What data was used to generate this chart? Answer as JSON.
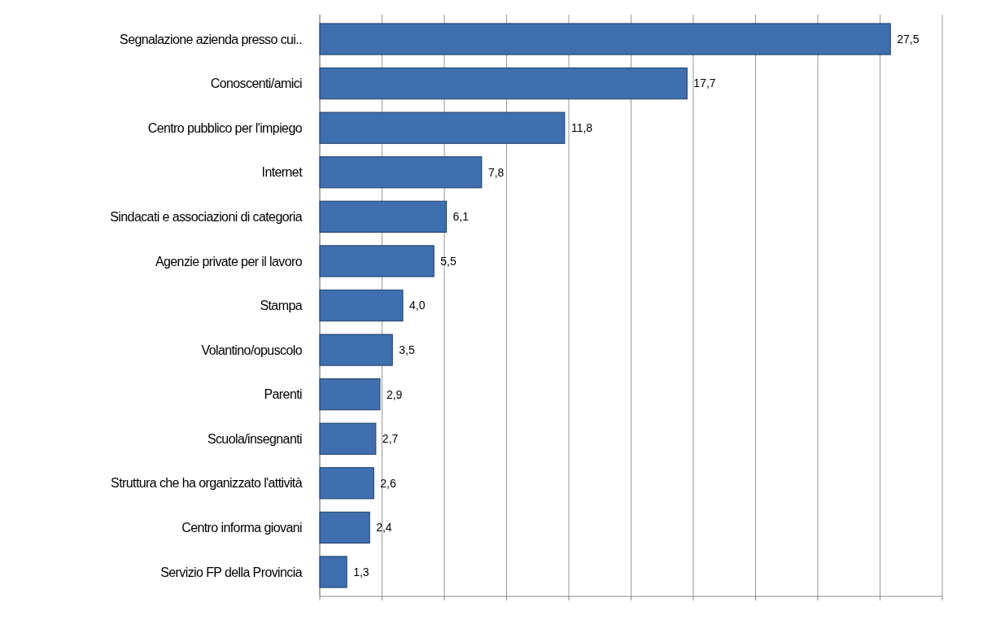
{
  "chart_data": {
    "type": "bar",
    "orientation": "horizontal",
    "categories": [
      "Segnalazione azienda presso cui..",
      "Conoscenti/amici",
      "Centro pubblico per l'impiego",
      "Internet",
      "Sindacati e associazioni di categoria",
      "Agenzie private per il lavoro",
      "Stampa",
      "Volantino/opuscolo",
      "Parenti",
      "Scuola/insegnanti",
      "Struttura che ha organizzato l'attività",
      "Centro informa giovani",
      "Servizio FP della Provincia"
    ],
    "values": [
      27.5,
      17.7,
      11.8,
      7.8,
      6.1,
      5.5,
      4.0,
      3.5,
      2.9,
      2.7,
      2.6,
      2.4,
      1.3
    ],
    "value_labels": [
      "27,5",
      "17,7",
      "11,8",
      "7,8",
      "6,1",
      "5,5",
      "4,0",
      "3,5",
      "2,9",
      "2,7",
      "2,6",
      "2,4",
      "1,3"
    ],
    "color": "#3f6fae",
    "xlim": [
      0,
      30
    ],
    "xticks": [
      {
        "value": 0,
        "label": null
      },
      {
        "value": 3,
        "label": null
      },
      {
        "value": 6,
        "label": null
      },
      {
        "value": 9,
        "label": null
      },
      {
        "value": 12,
        "label": null
      },
      {
        "value": 15,
        "label": null
      },
      {
        "value": 18,
        "label": null
      },
      {
        "value": 21,
        "label": null
      },
      {
        "value": 24,
        "label": null
      },
      {
        "value": 27,
        "label": null
      },
      {
        "value": 30,
        "label": null
      }
    ],
    "grid": "x"
  }
}
